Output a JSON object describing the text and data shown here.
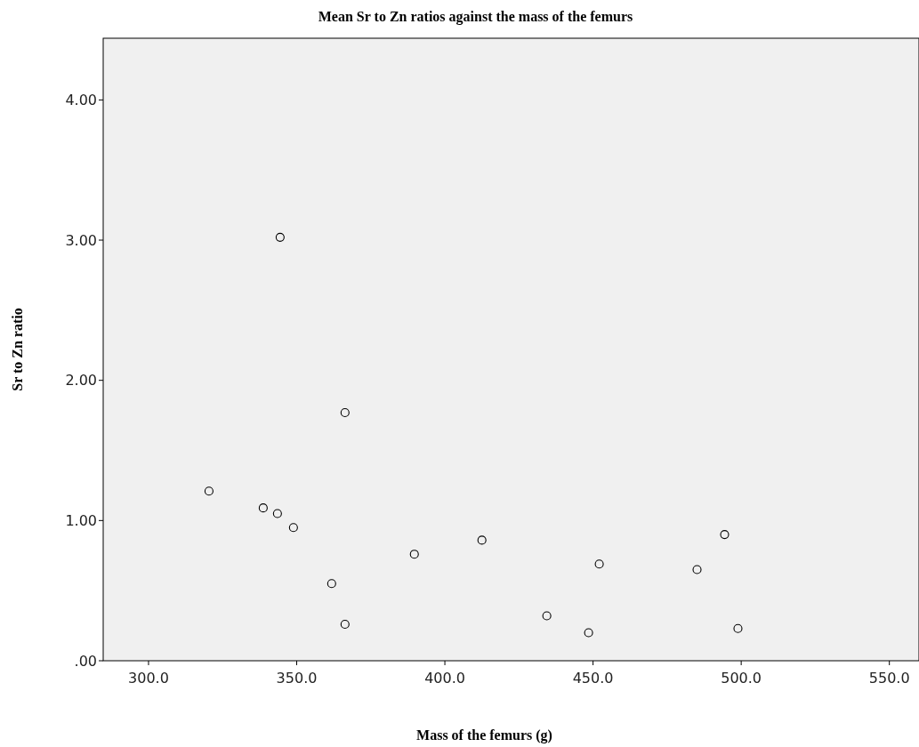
{
  "chart_data": {
    "type": "scatter",
    "title": "Mean Sr to Zn ratios against the mass of the femurs",
    "xlabel": "Mass of the femurs (g)",
    "ylabel": "Sr to Zn ratio",
    "x": [
      320.4,
      338.7,
      343.5,
      344.4,
      348.9,
      361.8,
      366.3,
      366.3,
      389.7,
      412.5,
      434.4,
      448.5,
      452.1,
      485.1,
      494.4,
      498.9
    ],
    "series": [
      {
        "color": "#000000",
        "values": [
          1.21,
          1.09,
          1.05,
          3.02,
          0.95,
          0.55,
          1.77,
          0.26,
          0.76,
          0.86,
          0.32,
          0.2,
          0.69,
          0.65,
          0.9,
          0.23
        ]
      }
    ],
    "xlim": [
      284.7,
      560
    ],
    "ylim": [
      0,
      4.44
    ],
    "xticks": [
      {
        "value": 300,
        "label": "300.0"
      },
      {
        "value": 350,
        "label": "350.0"
      },
      {
        "value": 400,
        "label": "400.0"
      },
      {
        "value": 450,
        "label": "450.0"
      },
      {
        "value": 500,
        "label": "500.0"
      },
      {
        "value": 550,
        "label": "550.0"
      }
    ],
    "yticks": [
      {
        "value": 0,
        "label": ".00"
      },
      {
        "value": 1,
        "label": "1.00"
      },
      {
        "value": 2,
        "label": "2.00"
      },
      {
        "value": 3,
        "label": "3.00"
      },
      {
        "value": 4,
        "label": "4.00"
      }
    ],
    "marker": "circle",
    "grid": false
  }
}
